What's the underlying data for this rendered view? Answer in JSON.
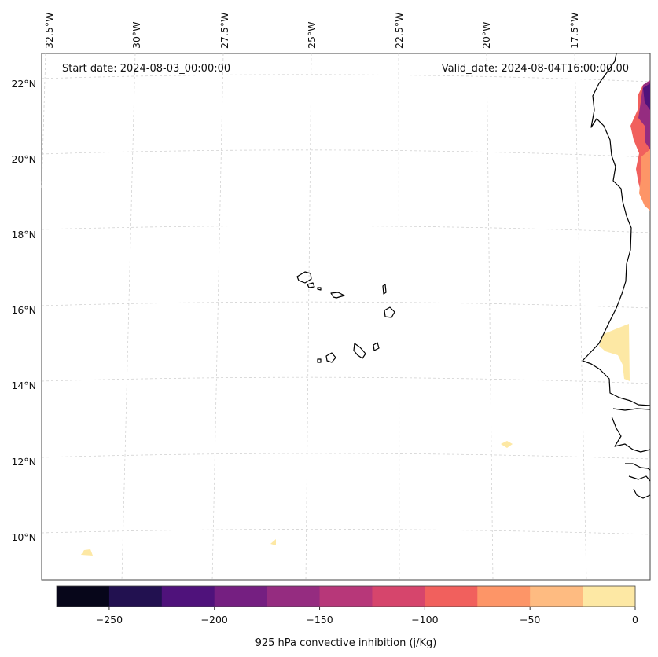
{
  "map": {
    "start_date": "Start date: 2024-08-03_00:00:00",
    "valid_date": "Valid_date: 2024-08-04T16:00:00.00",
    "lon_labels": [
      "32.5°W",
      "30°W",
      "27.5°W",
      "25°W",
      "22.5°W",
      "20°W",
      "17.5°W"
    ],
    "lat_labels": [
      "22°N",
      "20°N",
      "18°N",
      "16°N",
      "14°N",
      "12°N",
      "10°N"
    ],
    "colorbar": {
      "label": "925 hPa convective inhibition (j/Kg)",
      "ticks": [
        "−250",
        "−200",
        "−150",
        "−100",
        "−50",
        "0"
      ],
      "levels": [
        -275,
        -250,
        -225,
        -200,
        -175,
        -150,
        -125,
        -100,
        -75,
        -50,
        -25,
        0
      ],
      "colors": [
        "#07061a",
        "#221150",
        "#4f127b",
        "#751f81",
        "#952c80",
        "#b73779",
        "#d6456c",
        "#f1605d",
        "#fd9567",
        "#febb81",
        "#fde8a4"
      ]
    }
  }
}
